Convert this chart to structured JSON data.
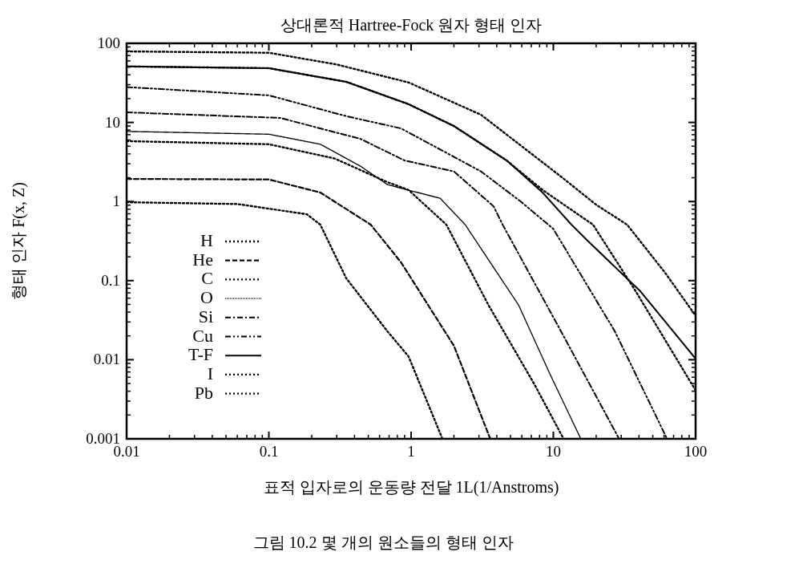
{
  "chart_data": {
    "type": "line",
    "title": "상대론적 Hartree-Fock 원자 형태 인자",
    "xlabel": "표적 입자로의 운동량 전달 1L(1/Anstroms)",
    "ylabel": "형태 인자 F(x, Z)",
    "log": "xy",
    "xlim": [
      0.01,
      100
    ],
    "ylim": [
      0.001,
      100
    ],
    "xticks": [
      0.01,
      0.1,
      1,
      10,
      100
    ],
    "yticks": [
      0.001,
      0.01,
      0.1,
      1,
      10,
      100
    ],
    "grid": false,
    "legend": "left",
    "annotations": [
      "그림 10.2 몇 개의 원소들의 형태 인자"
    ],
    "series": [
      {
        "name": "H",
        "color": "#000000",
        "line_style": "dotted",
        "x": [
          0.01,
          0.06,
          0.185,
          0.23,
          0.35,
          0.68,
          0.96,
          1.66
        ],
        "values": [
          0.98,
          0.93,
          0.69,
          0.51,
          0.107,
          0.023,
          0.011,
          0.001
        ]
      },
      {
        "name": "He",
        "color": "#000000",
        "line_style": "dashed",
        "x": [
          0.01,
          0.1,
          0.23,
          0.52,
          0.85,
          2.0,
          3.6
        ],
        "values": [
          1.93,
          1.9,
          1.3,
          0.51,
          0.17,
          0.015,
          0.001
        ]
      },
      {
        "name": "C",
        "color": "#000000",
        "line_style": "dotted",
        "x": [
          0.01,
          0.1,
          0.29,
          0.68,
          0.96,
          1.77,
          3.5,
          7.4,
          11.8
        ],
        "values": [
          5.8,
          5.3,
          3.5,
          1.76,
          1.4,
          0.51,
          0.049,
          0.0048,
          0.001
        ]
      },
      {
        "name": "O",
        "color": "#000000",
        "line_style": "finedotted",
        "x": [
          0.01,
          0.1,
          0.23,
          0.44,
          0.68,
          0.96,
          1.6,
          2.4,
          5.7,
          9.5,
          15.6
        ],
        "values": [
          7.7,
          7.1,
          5.3,
          2.8,
          1.64,
          1.39,
          1.1,
          0.51,
          0.049,
          0.0065,
          0.001
        ]
      },
      {
        "name": "Si",
        "color": "#000000",
        "line_style": "dashdot",
        "x": [
          0.01,
          0.12,
          0.44,
          0.9,
          2.0,
          3.8,
          4.4,
          11.3,
          29
        ],
        "values": [
          13.4,
          11.4,
          6.2,
          3.3,
          2.4,
          0.87,
          0.51,
          0.023,
          0.001
        ]
      },
      {
        "name": "Cu",
        "color": "#000000",
        "line_style": "dashdotdot",
        "x": [
          0.01,
          0.1,
          0.35,
          0.85,
          3.1,
          5.9,
          10,
          27,
          63
        ],
        "values": [
          28,
          22,
          12,
          8.4,
          2.4,
          1.0,
          0.45,
          0.023,
          0.001
        ]
      },
      {
        "name": "T-F",
        "color": "#000000",
        "line_style": "solid",
        "x": [
          0.01,
          0.1,
          0.35,
          0.96,
          2.0,
          4.7,
          8.4,
          13.4,
          17.4,
          41,
          100
        ],
        "values": [
          51,
          48.5,
          32.6,
          17,
          9.0,
          3.3,
          1.3,
          0.51,
          0.32,
          0.073,
          0.0103
        ]
      },
      {
        "name": "I",
        "color": "#000000",
        "line_style": "dotted",
        "x": [
          0.01,
          0.1,
          0.35,
          0.96,
          2.0,
          4.7,
          8.4,
          12,
          19,
          38,
          100
        ],
        "values": [
          51,
          48.5,
          32.6,
          17,
          9.0,
          3.3,
          1.4,
          0.9,
          0.51,
          0.073,
          0.0041
        ]
      },
      {
        "name": "Pb",
        "color": "#000000",
        "line_style": "dotted",
        "x": [
          0.01,
          0.1,
          0.3,
          0.96,
          3.1,
          11.3,
          20,
          33,
          61,
          100
        ],
        "values": [
          79,
          76,
          54,
          32,
          12.5,
          2.07,
          0.91,
          0.51,
          0.126,
          0.036
        ]
      }
    ]
  }
}
